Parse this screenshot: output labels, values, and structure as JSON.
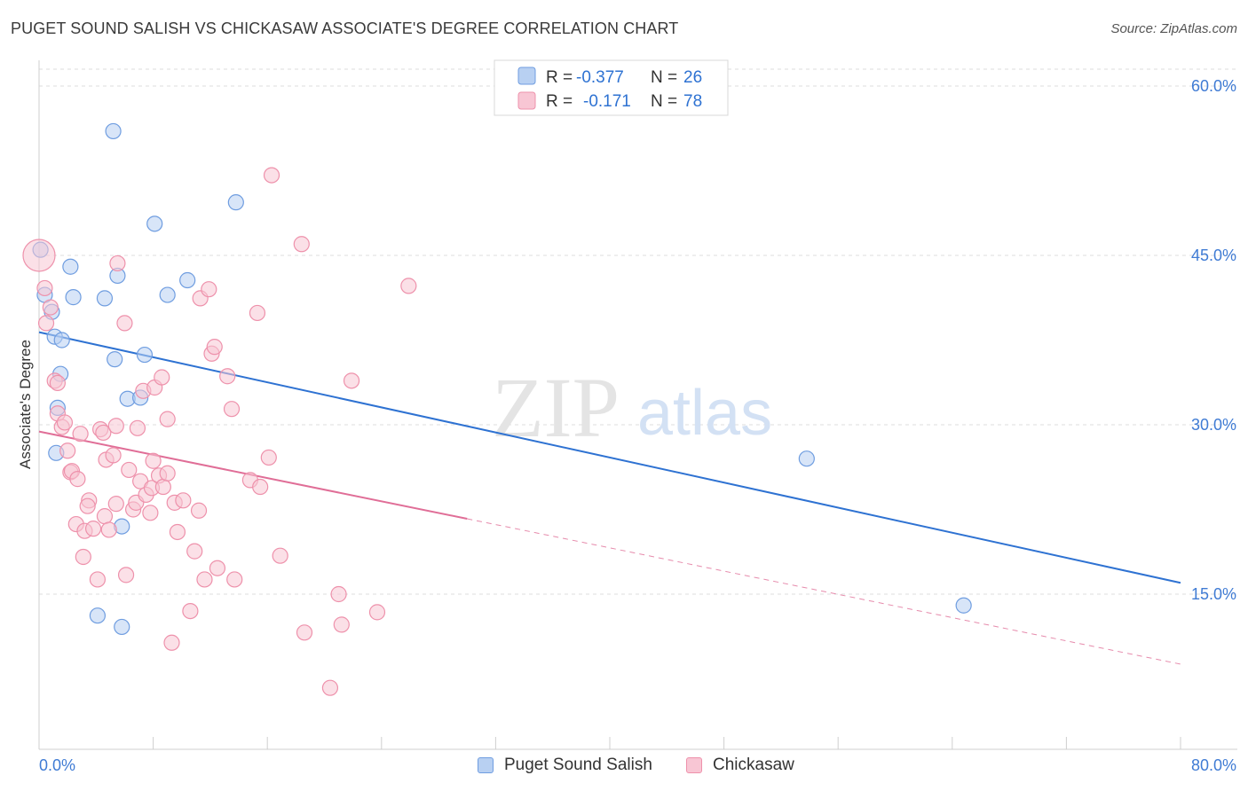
{
  "title": "PUGET SOUND SALISH VS CHICKASAW ASSOCIATE'S DEGREE CORRELATION CHART",
  "source": "Source: ZipAtlas.com",
  "watermark": {
    "zip": "ZIP",
    "atlas": "atlas"
  },
  "legend": {
    "rows": [
      {
        "r_label": "R =",
        "r_value": "-0.377",
        "n_label": "N =",
        "n_value": "26"
      },
      {
        "r_label": "R =",
        "r_value": "-0.171",
        "n_label": "N =",
        "n_value": "78"
      }
    ]
  },
  "colors": {
    "blue_fill": "#b8d0f2",
    "blue_stroke": "#6f9de0",
    "blue_line": "#2e72d2",
    "pink_fill": "#f8c6d4",
    "pink_stroke": "#ee91ab",
    "pink_line": "#e06e97",
    "axis_text": "#3f7bd4",
    "grid": "#dddddd"
  },
  "chart_data": {
    "type": "scatter",
    "title": "PUGET SOUND SALISH VS CHICKASAW ASSOCIATE'S DEGREE CORRELATION CHART",
    "xlabel": "",
    "ylabel": "Associate's Degree",
    "xlim": [
      0,
      80
    ],
    "ylim": [
      0,
      62
    ],
    "x_tick_labels": [
      "0.0%",
      "80.0%"
    ],
    "y_ticks": [
      15,
      30,
      45,
      60
    ],
    "y_tick_labels": [
      "15.0%",
      "30.0%",
      "45.0%",
      "60.0%"
    ],
    "grid": true,
    "legend_position": "top-center",
    "series": [
      {
        "name": "Puget Sound Salish",
        "color": "blue",
        "r": -0.377,
        "n": 26,
        "trend": {
          "x0": 0,
          "y0": 38.2,
          "x1": 80,
          "y1": 16.0,
          "dashed_from": null
        },
        "points": [
          [
            0.1,
            45.5
          ],
          [
            0.4,
            41.5
          ],
          [
            0.9,
            40.0
          ],
          [
            1.1,
            37.8
          ],
          [
            1.6,
            37.5
          ],
          [
            1.5,
            34.5
          ],
          [
            1.3,
            31.5
          ],
          [
            1.2,
            27.5
          ],
          [
            2.2,
            44.0
          ],
          [
            2.4,
            41.3
          ],
          [
            4.6,
            41.2
          ],
          [
            5.2,
            56.0
          ],
          [
            5.5,
            43.2
          ],
          [
            5.3,
            35.8
          ],
          [
            6.2,
            32.3
          ],
          [
            7.4,
            36.2
          ],
          [
            7.1,
            32.4
          ],
          [
            8.1,
            47.8
          ],
          [
            9.0,
            41.5
          ],
          [
            10.4,
            42.8
          ],
          [
            13.8,
            49.7
          ],
          [
            5.8,
            12.1
          ],
          [
            4.1,
            13.1
          ],
          [
            5.8,
            21.0
          ],
          [
            53.8,
            27.0
          ],
          [
            64.8,
            14.0
          ]
        ]
      },
      {
        "name": "Chickasaw",
        "color": "pink",
        "r": -0.171,
        "n": 78,
        "trend": {
          "x0": 0,
          "y0": 29.4,
          "x1": 80,
          "y1": 8.8,
          "dashed_from": 30
        },
        "points": [
          [
            0.0,
            45.0
          ],
          [
            0.4,
            42.1
          ],
          [
            0.5,
            39.0
          ],
          [
            0.8,
            40.4
          ],
          [
            1.1,
            33.9
          ],
          [
            1.3,
            33.7
          ],
          [
            1.3,
            31.0
          ],
          [
            1.6,
            29.8
          ],
          [
            1.8,
            30.2
          ],
          [
            2.0,
            27.7
          ],
          [
            2.2,
            25.8
          ],
          [
            2.3,
            25.9
          ],
          [
            2.7,
            25.2
          ],
          [
            2.6,
            21.2
          ],
          [
            2.9,
            29.2
          ],
          [
            3.1,
            18.3
          ],
          [
            3.2,
            20.6
          ],
          [
            3.5,
            23.3
          ],
          [
            3.4,
            22.8
          ],
          [
            3.8,
            20.8
          ],
          [
            4.1,
            16.3
          ],
          [
            4.3,
            29.6
          ],
          [
            4.5,
            29.3
          ],
          [
            4.7,
            26.9
          ],
          [
            4.6,
            21.9
          ],
          [
            4.9,
            20.7
          ],
          [
            5.2,
            27.3
          ],
          [
            5.4,
            29.9
          ],
          [
            5.5,
            44.3
          ],
          [
            6.0,
            39.0
          ],
          [
            6.1,
            16.7
          ],
          [
            6.3,
            26.0
          ],
          [
            6.6,
            22.5
          ],
          [
            6.8,
            23.1
          ],
          [
            6.9,
            29.7
          ],
          [
            7.1,
            25.0
          ],
          [
            7.3,
            33.0
          ],
          [
            7.5,
            23.8
          ],
          [
            7.8,
            22.2
          ],
          [
            7.9,
            24.4
          ],
          [
            8.0,
            26.8
          ],
          [
            8.1,
            33.3
          ],
          [
            8.4,
            25.5
          ],
          [
            8.7,
            24.5
          ],
          [
            8.6,
            34.2
          ],
          [
            9.0,
            25.7
          ],
          [
            9.0,
            30.5
          ],
          [
            9.5,
            23.1
          ],
          [
            9.7,
            20.5
          ],
          [
            10.1,
            23.3
          ],
          [
            10.6,
            13.5
          ],
          [
            10.9,
            18.8
          ],
          [
            11.2,
            22.4
          ],
          [
            11.3,
            41.2
          ],
          [
            11.6,
            16.3
          ],
          [
            11.9,
            42.0
          ],
          [
            12.1,
            36.3
          ],
          [
            12.3,
            36.9
          ],
          [
            12.5,
            17.3
          ],
          [
            13.2,
            34.3
          ],
          [
            13.5,
            31.4
          ],
          [
            13.7,
            16.3
          ],
          [
            14.8,
            25.1
          ],
          [
            15.3,
            39.9
          ],
          [
            15.5,
            24.5
          ],
          [
            16.1,
            27.1
          ],
          [
            16.3,
            52.1
          ],
          [
            16.9,
            18.4
          ],
          [
            18.4,
            46.0
          ],
          [
            18.6,
            11.6
          ],
          [
            20.4,
            6.7
          ],
          [
            21.0,
            15.0
          ],
          [
            21.2,
            12.3
          ],
          [
            21.9,
            33.9
          ],
          [
            23.7,
            13.4
          ],
          [
            25.9,
            42.3
          ],
          [
            9.3,
            10.7
          ],
          [
            5.4,
            23.0
          ]
        ]
      }
    ]
  }
}
